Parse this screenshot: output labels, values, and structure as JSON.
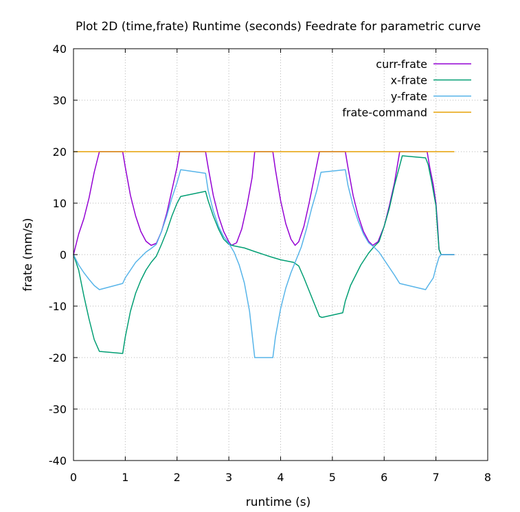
{
  "chart_data": {
    "type": "line",
    "title": "Plot 2D (time,frate) Runtime (seconds) Feedrate for parametric curve",
    "xlabel": "runtime (s)",
    "ylabel": "frate (mm/s)",
    "xlim": [
      0,
      8
    ],
    "ylim": [
      -40,
      40
    ],
    "xticks": [
      0,
      1,
      2,
      3,
      4,
      5,
      6,
      7,
      8
    ],
    "yticks": [
      -40,
      -30,
      -20,
      -10,
      0,
      10,
      20,
      30,
      40
    ],
    "grid": true,
    "legend_position": "top-right",
    "series": [
      {
        "name": "curr-frate",
        "color": "#9400d3",
        "points": [
          [
            0.0,
            0.0
          ],
          [
            0.05,
            2.0
          ],
          [
            0.1,
            4.0
          ],
          [
            0.2,
            7.0
          ],
          [
            0.3,
            11.0
          ],
          [
            0.4,
            16.0
          ],
          [
            0.5,
            20.0
          ],
          [
            0.95,
            20.0
          ],
          [
            1.0,
            17.0
          ],
          [
            1.1,
            11.5
          ],
          [
            1.2,
            7.5
          ],
          [
            1.3,
            4.5
          ],
          [
            1.4,
            2.6
          ],
          [
            1.5,
            1.8
          ],
          [
            1.6,
            2.2
          ],
          [
            1.7,
            4.5
          ],
          [
            1.8,
            8.0
          ],
          [
            1.9,
            12.5
          ],
          [
            2.0,
            17.0
          ],
          [
            2.05,
            20.0
          ],
          [
            2.55,
            20.0
          ],
          [
            2.6,
            17.0
          ],
          [
            2.7,
            11.5
          ],
          [
            2.8,
            7.5
          ],
          [
            2.9,
            4.5
          ],
          [
            3.0,
            2.5
          ],
          [
            3.05,
            1.8
          ],
          [
            3.15,
            2.3
          ],
          [
            3.25,
            5.0
          ],
          [
            3.35,
            9.5
          ],
          [
            3.45,
            15.0
          ],
          [
            3.5,
            20.0
          ],
          [
            3.85,
            20.0
          ],
          [
            3.9,
            16.5
          ],
          [
            4.0,
            10.5
          ],
          [
            4.1,
            6.0
          ],
          [
            4.2,
            3.0
          ],
          [
            4.28,
            1.8
          ],
          [
            4.35,
            2.5
          ],
          [
            4.45,
            5.5
          ],
          [
            4.55,
            10.0
          ],
          [
            4.65,
            15.0
          ],
          [
            4.75,
            20.0
          ],
          [
            5.25,
            20.0
          ],
          [
            5.3,
            17.0
          ],
          [
            5.4,
            11.5
          ],
          [
            5.5,
            7.5
          ],
          [
            5.6,
            4.5
          ],
          [
            5.7,
            2.6
          ],
          [
            5.78,
            1.8
          ],
          [
            5.88,
            2.5
          ],
          [
            6.0,
            5.5
          ],
          [
            6.1,
            9.5
          ],
          [
            6.2,
            14.0
          ],
          [
            6.3,
            20.0
          ],
          [
            6.83,
            20.0
          ],
          [
            6.88,
            17.0
          ],
          [
            6.95,
            13.5
          ],
          [
            7.0,
            10.0
          ],
          [
            7.03,
            6.0
          ],
          [
            7.06,
            1.0
          ],
          [
            7.1,
            0.0
          ],
          [
            7.35,
            0.0
          ]
        ]
      },
      {
        "name": "x-frate",
        "color": "#009e73",
        "points": [
          [
            0.0,
            0.0
          ],
          [
            0.1,
            -3.0
          ],
          [
            0.2,
            -8.0
          ],
          [
            0.3,
            -12.5
          ],
          [
            0.4,
            -16.5
          ],
          [
            0.5,
            -18.8
          ],
          [
            0.95,
            -19.2
          ],
          [
            1.0,
            -16.0
          ],
          [
            1.1,
            -11.0
          ],
          [
            1.2,
            -7.5
          ],
          [
            1.3,
            -5.0
          ],
          [
            1.4,
            -3.0
          ],
          [
            1.5,
            -1.5
          ],
          [
            1.6,
            -0.3
          ],
          [
            1.7,
            2.0
          ],
          [
            1.8,
            4.5
          ],
          [
            1.9,
            7.5
          ],
          [
            2.0,
            10.0
          ],
          [
            2.07,
            11.3
          ],
          [
            2.55,
            12.3
          ],
          [
            2.6,
            10.5
          ],
          [
            2.7,
            7.5
          ],
          [
            2.8,
            5.0
          ],
          [
            2.9,
            3.0
          ],
          [
            3.0,
            2.0
          ],
          [
            3.1,
            1.7
          ],
          [
            3.3,
            1.3
          ],
          [
            3.5,
            0.6
          ],
          [
            3.8,
            -0.4
          ],
          [
            4.0,
            -1.0
          ],
          [
            4.25,
            -1.5
          ],
          [
            4.35,
            -2.2
          ],
          [
            4.45,
            -4.5
          ],
          [
            4.55,
            -7.0
          ],
          [
            4.65,
            -9.5
          ],
          [
            4.75,
            -12.0
          ],
          [
            4.8,
            -12.2
          ],
          [
            5.2,
            -11.3
          ],
          [
            5.25,
            -9.0
          ],
          [
            5.35,
            -6.0
          ],
          [
            5.45,
            -4.0
          ],
          [
            5.55,
            -2.0
          ],
          [
            5.7,
            0.3
          ],
          [
            5.8,
            1.5
          ],
          [
            5.9,
            2.5
          ],
          [
            6.0,
            5.5
          ],
          [
            6.1,
            9.0
          ],
          [
            6.2,
            13.5
          ],
          [
            6.35,
            19.2
          ],
          [
            6.8,
            18.8
          ],
          [
            6.85,
            17.5
          ],
          [
            6.92,
            14.0
          ],
          [
            7.0,
            9.5
          ],
          [
            7.03,
            5.0
          ],
          [
            7.06,
            1.0
          ],
          [
            7.1,
            0.0
          ],
          [
            7.35,
            0.0
          ]
        ]
      },
      {
        "name": "y-frate",
        "color": "#56b4e9",
        "points": [
          [
            0.0,
            0.0
          ],
          [
            0.1,
            -2.0
          ],
          [
            0.2,
            -3.5
          ],
          [
            0.3,
            -4.8
          ],
          [
            0.4,
            -6.0
          ],
          [
            0.5,
            -6.8
          ],
          [
            0.95,
            -5.6
          ],
          [
            1.0,
            -4.5
          ],
          [
            1.1,
            -3.0
          ],
          [
            1.2,
            -1.5
          ],
          [
            1.3,
            -0.5
          ],
          [
            1.4,
            0.5
          ],
          [
            1.5,
            1.2
          ],
          [
            1.6,
            2.0
          ],
          [
            1.7,
            4.5
          ],
          [
            1.8,
            7.5
          ],
          [
            1.9,
            11.0
          ],
          [
            2.0,
            14.0
          ],
          [
            2.07,
            16.5
          ],
          [
            2.55,
            15.8
          ],
          [
            2.6,
            12.5
          ],
          [
            2.7,
            8.5
          ],
          [
            2.8,
            5.5
          ],
          [
            2.9,
            3.5
          ],
          [
            3.0,
            2.2
          ],
          [
            3.1,
            0.5
          ],
          [
            3.2,
            -2.0
          ],
          [
            3.3,
            -5.5
          ],
          [
            3.4,
            -11.0
          ],
          [
            3.5,
            -20.0
          ],
          [
            3.85,
            -20.0
          ],
          [
            3.9,
            -16.0
          ],
          [
            4.0,
            -10.5
          ],
          [
            4.1,
            -6.5
          ],
          [
            4.2,
            -3.5
          ],
          [
            4.3,
            -1.0
          ],
          [
            4.4,
            1.5
          ],
          [
            4.5,
            5.0
          ],
          [
            4.6,
            9.0
          ],
          [
            4.7,
            12.5
          ],
          [
            4.78,
            16.0
          ],
          [
            5.25,
            16.5
          ],
          [
            5.3,
            13.5
          ],
          [
            5.4,
            9.5
          ],
          [
            5.5,
            6.5
          ],
          [
            5.6,
            4.0
          ],
          [
            5.7,
            2.3
          ],
          [
            5.8,
            1.5
          ],
          [
            5.9,
            0.5
          ],
          [
            6.0,
            -1.0
          ],
          [
            6.1,
            -2.5
          ],
          [
            6.2,
            -4.0
          ],
          [
            6.3,
            -5.6
          ],
          [
            6.8,
            -6.8
          ],
          [
            6.85,
            -6.0
          ],
          [
            6.95,
            -4.5
          ],
          [
            7.0,
            -2.5
          ],
          [
            7.03,
            -1.5
          ],
          [
            7.06,
            -0.5
          ],
          [
            7.1,
            0.0
          ],
          [
            7.35,
            0.0
          ]
        ]
      },
      {
        "name": "frate-command",
        "color": "#e69f00",
        "points": [
          [
            0.0,
            20.0
          ],
          [
            7.35,
            20.0
          ]
        ]
      }
    ]
  }
}
